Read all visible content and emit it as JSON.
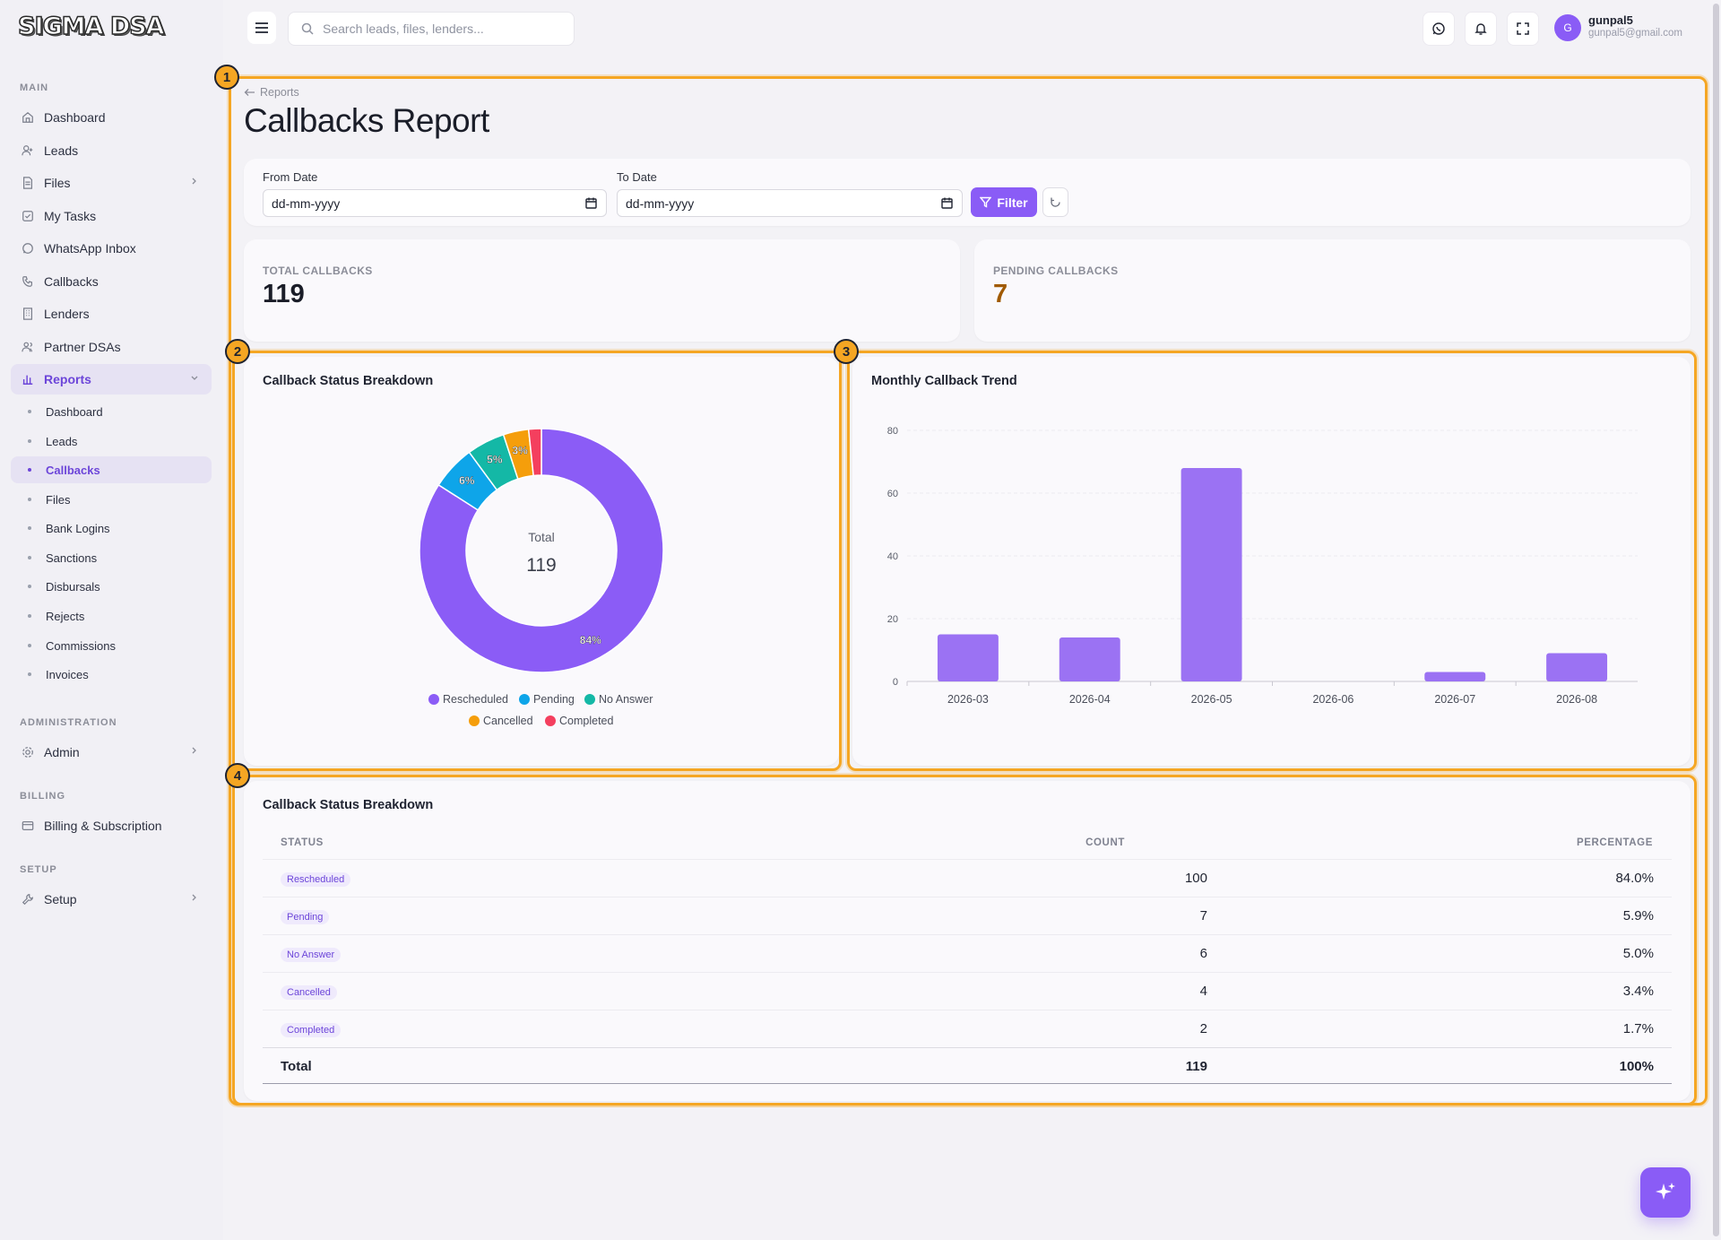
{
  "app": {
    "logo_text": "SIGMA DSA",
    "search_placeholder": "Search leads, files, lenders...",
    "user": {
      "initial": "G",
      "name": "gunpal5",
      "email": "gunpal5@gmail.com"
    }
  },
  "sidebar": {
    "sections": {
      "main": "MAIN",
      "administration": "ADMINISTRATION",
      "billing": "BILLING",
      "setup": "SETUP"
    },
    "main_items": [
      {
        "label": "Dashboard",
        "icon": "home-icon"
      },
      {
        "label": "Leads",
        "icon": "user-plus-icon"
      },
      {
        "label": "Files",
        "icon": "file-icon"
      },
      {
        "label": "My Tasks",
        "icon": "task-icon"
      },
      {
        "label": "WhatsApp Inbox",
        "icon": "whatsapp-icon"
      },
      {
        "label": "Callbacks",
        "icon": "phone-icon"
      },
      {
        "label": "Lenders",
        "icon": "building-icon"
      },
      {
        "label": "Partner DSAs",
        "icon": "users-icon"
      },
      {
        "label": "Reports",
        "icon": "bar-chart-icon"
      }
    ],
    "report_items": [
      "Dashboard",
      "Leads",
      "Callbacks",
      "Files",
      "Bank Logins",
      "Sanctions",
      "Disbursals",
      "Rejects",
      "Commissions",
      "Invoices"
    ],
    "admin_label": "Admin",
    "billing_label": "Billing & Subscription",
    "setup_label": "Setup"
  },
  "page": {
    "breadcrumb": "Reports",
    "title": "Callbacks Report",
    "filters": {
      "from_label": "From Date",
      "to_label": "To Date",
      "from_value": "dd-mm-yyyy",
      "to_value": "dd-mm-yyyy",
      "filter_button": "Filter"
    },
    "stats": {
      "total_label": "TOTAL CALLBACKS",
      "total_value": "119",
      "pending_label": "PENDING CALLBACKS",
      "pending_value": "7"
    },
    "markers": [
      "1",
      "2",
      "3",
      "4"
    ]
  },
  "colors": {
    "accent": "#8a5cf6",
    "highlight": "#f5a623",
    "rescheduled": "#8b5cf6",
    "pending": "#0ea5e9",
    "no_answer": "#14b8a6",
    "cancelled": "#f59e0b",
    "completed": "#f43f5e",
    "pending_value": "#a05a00"
  },
  "chart_data": [
    {
      "type": "pie",
      "title": "Callback Status Breakdown",
      "center_label": "Total",
      "center_value": "119",
      "legend_placement": "bottom",
      "slices": [
        {
          "label": "Rescheduled",
          "value": 100,
          "pct_label": "84%"
        },
        {
          "label": "Pending",
          "value": 7,
          "pct_label": "6%"
        },
        {
          "label": "No Answer",
          "value": 6,
          "pct_label": "5%"
        },
        {
          "label": "Cancelled",
          "value": 4,
          "pct_label": "3%"
        },
        {
          "label": "Completed",
          "value": 2,
          "pct_label": ""
        }
      ]
    },
    {
      "type": "bar",
      "title": "Monthly Callback Trend",
      "categories": [
        "2026-03",
        "2026-04",
        "2026-05",
        "2026-06",
        "2026-07",
        "2026-08"
      ],
      "values": [
        15,
        14,
        68,
        0,
        3,
        9
      ],
      "ylim": [
        0,
        80
      ],
      "yticks": [
        0,
        20,
        40,
        60,
        80
      ],
      "grid": true
    }
  ],
  "table": {
    "title": "Callback Status Breakdown",
    "headers": [
      "STATUS",
      "COUNT",
      "PERCENTAGE"
    ],
    "rows": [
      {
        "status": "Rescheduled",
        "count": "100",
        "percentage": "84.0%"
      },
      {
        "status": "Pending",
        "count": "7",
        "percentage": "5.9%"
      },
      {
        "status": "No Answer",
        "count": "6",
        "percentage": "5.0%"
      },
      {
        "status": "Cancelled",
        "count": "4",
        "percentage": "3.4%"
      },
      {
        "status": "Completed",
        "count": "2",
        "percentage": "1.7%"
      }
    ],
    "total": {
      "label": "Total",
      "count": "119",
      "percentage": "100%"
    }
  }
}
